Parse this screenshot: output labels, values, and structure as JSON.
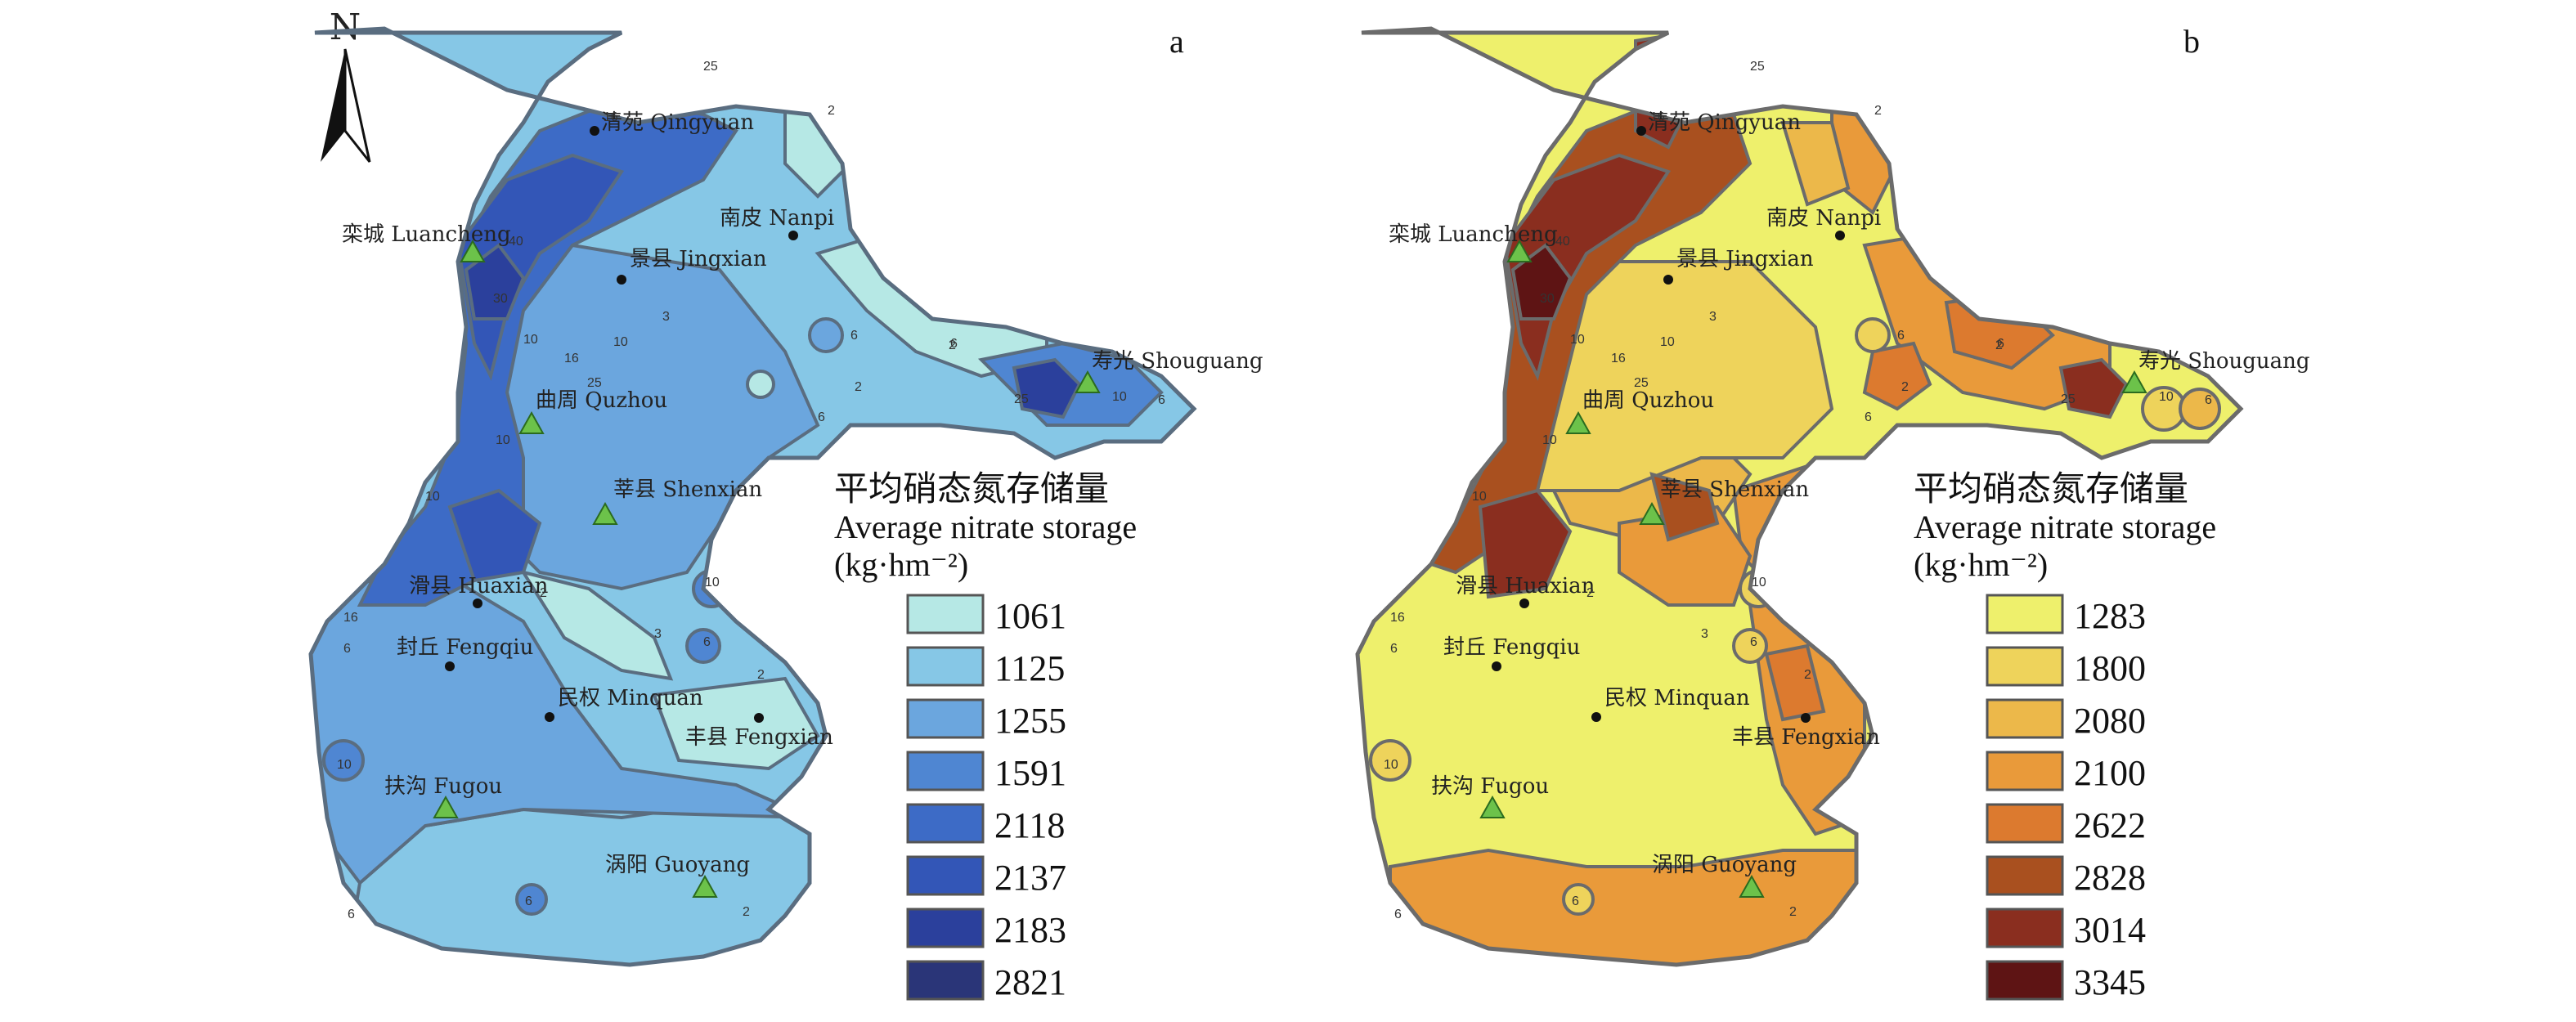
{
  "north_label": "N",
  "panels": [
    {
      "id": "a",
      "letter": "a",
      "legend": {
        "title_cn": "平均硝态氮存储量",
        "title_en": "Average nitrate storage",
        "unit": "(kg·hm⁻²)",
        "classes": [
          {
            "value": "1061",
            "color": "#b6e8e5"
          },
          {
            "value": "1125",
            "color": "#86c7e6"
          },
          {
            "value": "1255",
            "color": "#6ba6de"
          },
          {
            "value": "1591",
            "color": "#4f86d2"
          },
          {
            "value": "2118",
            "color": "#3d6bc6"
          },
          {
            "value": "2137",
            "color": "#3356b7"
          },
          {
            "value": "2183",
            "color": "#2b409c"
          },
          {
            "value": "2821",
            "color": "#2a3578"
          }
        ]
      },
      "fill_colors": {
        "base": "#86c7e6",
        "c3": "#6ba6de",
        "c4": "#4f86d2",
        "c5": "#3d6bc6",
        "c6": "#3356b7",
        "c7": "#2b409c",
        "c8": "#2a3578",
        "c1": "#b6e8e5"
      }
    },
    {
      "id": "b",
      "letter": "b",
      "legend": {
        "title_cn": "平均硝态氮存储量",
        "title_en": "Average nitrate storage",
        "unit": "(kg·hm⁻²)",
        "classes": [
          {
            "value": "1283",
            "color": "#eef06c"
          },
          {
            "value": "1800",
            "color": "#eed35b"
          },
          {
            "value": "2080",
            "color": "#ecb84a"
          },
          {
            "value": "2100",
            "color": "#e99a3a"
          },
          {
            "value": "2622",
            "color": "#dc7a2f"
          },
          {
            "value": "2828",
            "color": "#a9501f"
          },
          {
            "value": "3014",
            "color": "#8a2e1f"
          },
          {
            "value": "3345",
            "color": "#5e1414"
          }
        ]
      },
      "fill_colors": {
        "base": "#eef06c",
        "c2": "#eed35b",
        "c3": "#ecb84a",
        "c4": "#e99a3a",
        "c5": "#dc7a2f",
        "c6": "#a9501f",
        "c7": "#8a2e1f",
        "c8": "#5e1414"
      }
    }
  ],
  "sites": {
    "qingyuan": "清苑 Qingyuan",
    "nanpi": "南皮 Nanpi",
    "luancheng": "栾城 Luancheng",
    "jingxian": "景县 Jingxian",
    "shouguang": "寿光 Shouguang",
    "quzhou": "曲周 Quzhou",
    "shenxian": "莘县 Shenxian",
    "huaxian": "滑县 Huaxian",
    "fengqiu": "封丘 Fengqiu",
    "minquan": "民权 Minquan",
    "fengxian": "丰县 Fengxian",
    "fugou": "扶沟 Fugou",
    "guoyang": "涡阳 Guoyang"
  },
  "contour_labels": [
    "25",
    "16",
    "2",
    "6",
    "40",
    "30",
    "10",
    "3",
    "2",
    "25",
    "10",
    "6",
    "16",
    "10",
    "25",
    "10",
    "6",
    "2",
    "6",
    "10",
    "6",
    "2",
    "3",
    "6",
    "2",
    "10",
    "16",
    "10",
    "6",
    "6",
    "2"
  ]
}
